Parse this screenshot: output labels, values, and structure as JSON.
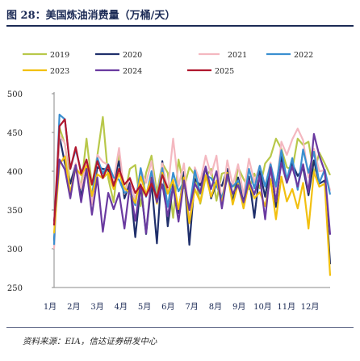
{
  "figure": {
    "title": "图 28：美国炼油消费量（万桶/天）",
    "source": "资料来源：EIA，信达证券研发中心"
  },
  "chart_data": {
    "type": "line",
    "title": "",
    "xlabel": "",
    "ylabel": "",
    "ylim": [
      250,
      500
    ],
    "yticks": [
      250,
      300,
      350,
      400,
      450,
      500
    ],
    "x_tick_labels": [
      "1月",
      "2月",
      "3月",
      "4月",
      "5月",
      "6月",
      "7月",
      "8月",
      "9月",
      "10月",
      "11月",
      "12月"
    ],
    "grid": false,
    "legend": "top",
    "points_per_series": 52,
    "series": [
      {
        "name": "2019",
        "color": "#b8c84a",
        "values": [
          305,
          456,
          435,
          384,
          402,
          380,
          442,
          382,
          420,
          470,
          391,
          360,
          425,
          368,
          403,
          408,
          355,
          398,
          420,
          372,
          410,
          398,
          340,
          415,
          378,
          405,
          395,
          358,
          392,
          403,
          362,
          397,
          399,
          362,
          405,
          390,
          377,
          397,
          378,
          410,
          419,
          442,
          429,
          405,
          402,
          442,
          434,
          438,
          397,
          424,
          410,
          395
        ]
      },
      {
        "name": "2020",
        "color": "#1f2f6b",
        "values": [
          310,
          445,
          410,
          384,
          409,
          367,
          404,
          362,
          405,
          403,
          402,
          387,
          413,
          365,
          385,
          315,
          382,
          319,
          386,
          307,
          413,
          329,
          383,
          346,
          399,
          305,
          390,
          382,
          405,
          365,
          385,
          381,
          403,
          360,
          392,
          360,
          393,
          340,
          400,
          367,
          409,
          354,
          419,
          387,
          410,
          394,
          404,
          369,
          414,
          384,
          388,
          280
        ]
      },
      {
        "name": "2021",
        "color": "#f4b8c0",
        "values": [
          300,
          446,
          436,
          368,
          410,
          378,
          414,
          357,
          421,
          412,
          408,
          388,
          430,
          371,
          392,
          362,
          402,
          385,
          413,
          360,
          410,
          375,
          442,
          381,
          410,
          333,
          405,
          386,
          420,
          395,
          420,
          359,
          414,
          382,
          409,
          369,
          416,
          386,
          407,
          381,
          411,
          374,
          438,
          421,
          441,
          455,
          440,
          392,
          429,
          400,
          401,
          375
        ]
      },
      {
        "name": "2022",
        "color": "#3a8fd0",
        "values": [
          305,
          473,
          467,
          403,
          428,
          400,
          404,
          368,
          417,
          397,
          409,
          392,
          389,
          372,
          376,
          356,
          404,
          367,
          400,
          362,
          404,
          354,
          398,
          374,
          387,
          350,
          401,
          371,
          395,
          391,
          381,
          366,
          390,
          380,
          388,
          356,
          403,
          378,
          407,
          380,
          409,
          380,
          427,
          389,
          417,
          376,
          428,
          398,
          425,
          385,
          402,
          370
        ]
      },
      {
        "name": "2023",
        "color": "#f2c010",
        "values": [
          320,
          409,
          419,
          372,
          404,
          395,
          407,
          368,
          396,
          391,
          398,
          377,
          397,
          378,
          372,
          359,
          393,
          370,
          392,
          358,
          398,
          371,
          389,
          351,
          392,
          333,
          377,
          360,
          395,
          367,
          388,
          358,
          398,
          357,
          384,
          352,
          385,
          365,
          373,
          355,
          390,
          338,
          393,
          361,
          377,
          352,
          385,
          326,
          399,
          380,
          384,
          265
        ]
      },
      {
        "name": "2024",
        "color": "#6a3aa0",
        "values": [
          335,
          415,
          402,
          365,
          408,
          360,
          403,
          344,
          392,
          322,
          372,
          351,
          372,
          326,
          382,
          336,
          383,
          320,
          392,
          360,
          383,
          342,
          380,
          335,
          388,
          350,
          384,
          372,
          406,
          377,
          400,
          352,
          396,
          371,
          382,
          360,
          388,
          370,
          394,
          338,
          405,
          361,
          411,
          385,
          406,
          380,
          409,
          373,
          448,
          420,
          400,
          318
        ]
      },
      {
        "name": "2025",
        "color": "#b0172e",
        "values": [
          330,
          458,
          467,
          403,
          431,
          397,
          415,
          383,
          413,
          391,
          408,
          381,
          403,
          383,
          391,
          372,
          382,
          368,
          384,
          366,
          395,
          378,
          null,
          null,
          null,
          null,
          null,
          null,
          null,
          null,
          null,
          null,
          null,
          null,
          null,
          null,
          null,
          null,
          null,
          null,
          null,
          null,
          null,
          null,
          null,
          null,
          null,
          null,
          null,
          null,
          null,
          null
        ]
      }
    ]
  }
}
